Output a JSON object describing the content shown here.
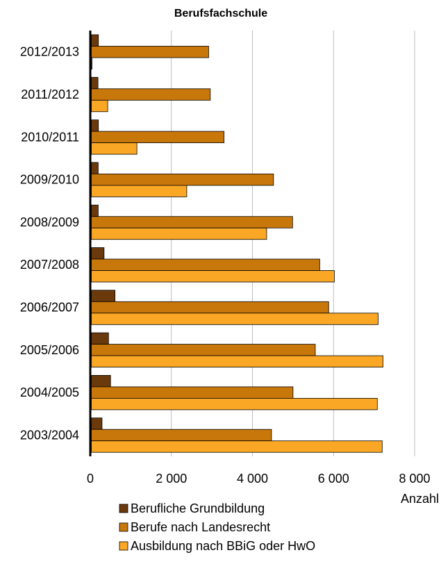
{
  "chart_data": {
    "type": "bar",
    "orientation": "horizontal",
    "title": "Berufsfachschule",
    "xlabel": "Anzahl",
    "ylabel": "",
    "xlim": [
      0,
      8000
    ],
    "x_ticks": [
      0,
      2000,
      4000,
      6000,
      8000
    ],
    "x_tick_labels": [
      "0",
      "2 000",
      "4 000",
      "6 000",
      "8 000"
    ],
    "grid": "vertical",
    "legend_position": "bottom",
    "categories": [
      "2012/2013",
      "2011/2012",
      "2010/2011",
      "2009/2010",
      "2008/2009",
      "2007/2008",
      "2006/2007",
      "2005/2006",
      "2004/2005",
      "2003/2004"
    ],
    "series": [
      {
        "name": "Berufliche Grundbildung",
        "color": "#6b3a0c",
        "values": [
          200,
          190,
          200,
          195,
          195,
          340,
          610,
          450,
          500,
          290
        ]
      },
      {
        "name": "Berufe nach Landesrecht",
        "color": "#c8770b",
        "values": [
          2920,
          2960,
          3300,
          4520,
          4990,
          5660,
          5880,
          5550,
          5000,
          4470
        ]
      },
      {
        "name": "Ausbildung nach BBiG oder HwO",
        "color": "#f9a724",
        "values": [
          20,
          430,
          1150,
          2380,
          4350,
          6020,
          7100,
          7220,
          7080,
          7200
        ]
      }
    ]
  }
}
